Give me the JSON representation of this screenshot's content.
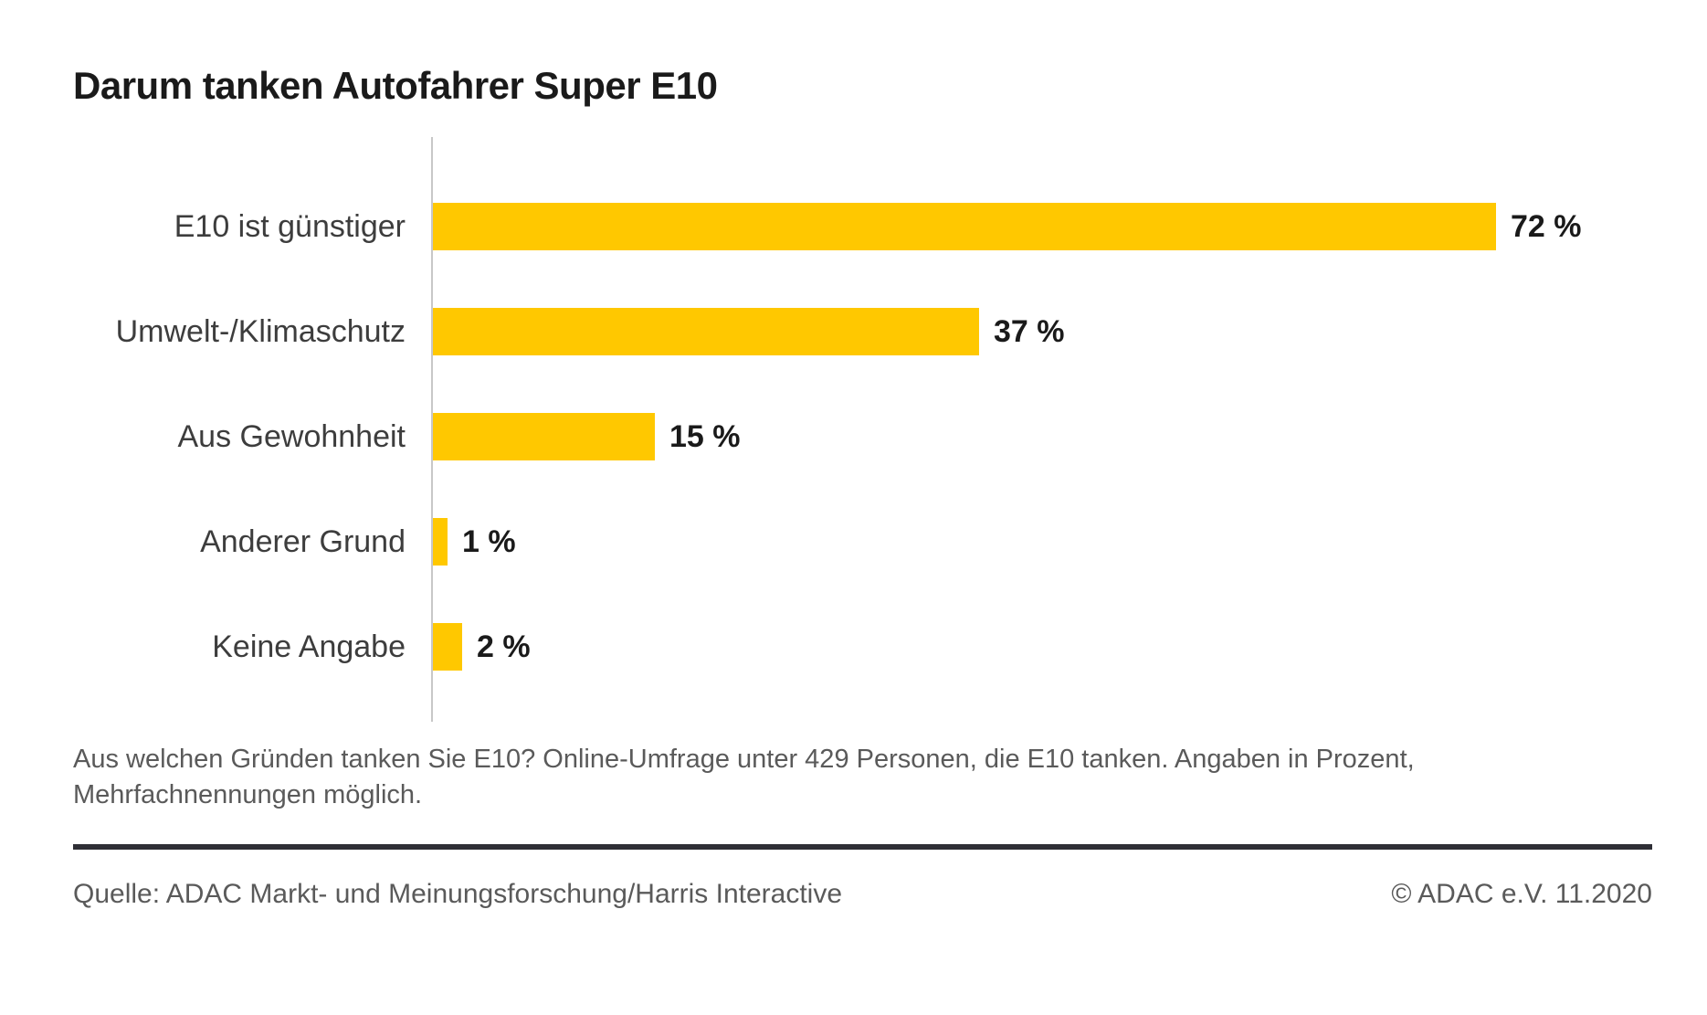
{
  "title": "Darum tanken Autofahrer Super E10",
  "chart_data": {
    "type": "bar",
    "orientation": "horizontal",
    "title": "Darum tanken Autofahrer Super E10",
    "categories": [
      "E10 ist günstiger",
      "Umwelt-/Klimaschutz",
      "Aus Gewohnheit",
      "Anderer Grund",
      "Keine Angabe"
    ],
    "values": [
      72,
      37,
      15,
      1,
      2
    ],
    "value_labels": [
      "72 %",
      "37 %",
      "15 %",
      "1 %",
      "2 %"
    ],
    "unit": "percent",
    "xlim": [
      0,
      75
    ],
    "grid": false,
    "legend": false,
    "bar_color": "#FFC800",
    "axis_color": "#C7C7C7"
  },
  "footnote": "Aus welchen Gründen tanken Sie E10? Online-Umfrage unter 429 Personen, die E10 tanken. Angaben in Prozent, Mehrfachnennungen möglich.",
  "footer": {
    "source": "Quelle: ADAC Markt- und Meinungsforschung/Harris Interactive",
    "copyright": "© ADAC e.V. 11.2020"
  },
  "colors": {
    "bar": "#FFC800",
    "title_text": "#1A1A1A",
    "label_text": "#3D3D3D",
    "muted_text": "#5A5A5A",
    "axis": "#C7C7C7",
    "divider": "#2F2F36",
    "background": "#FFFFFF"
  }
}
